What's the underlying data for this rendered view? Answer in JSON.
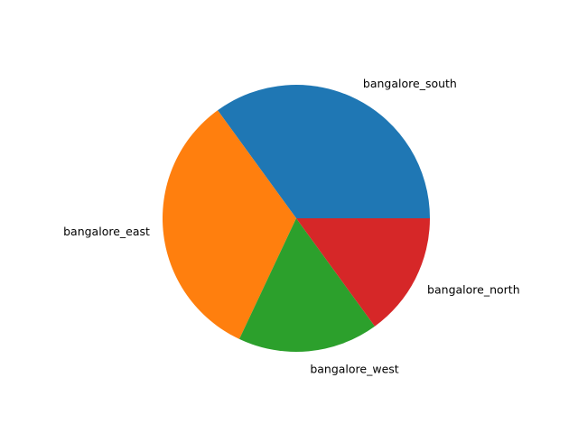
{
  "chart_data": {
    "type": "pie",
    "categories": [
      "bangalore_south",
      "bangalore_east",
      "bangalore_west",
      "bangalore_north"
    ],
    "values": [
      35,
      33,
      17,
      15
    ],
    "colors": [
      "#1f77b4",
      "#ff7f0e",
      "#2ca02c",
      "#d62728"
    ],
    "start_angle_deg": 0,
    "direction": "counterclockwise",
    "legend": "none",
    "title": ""
  }
}
